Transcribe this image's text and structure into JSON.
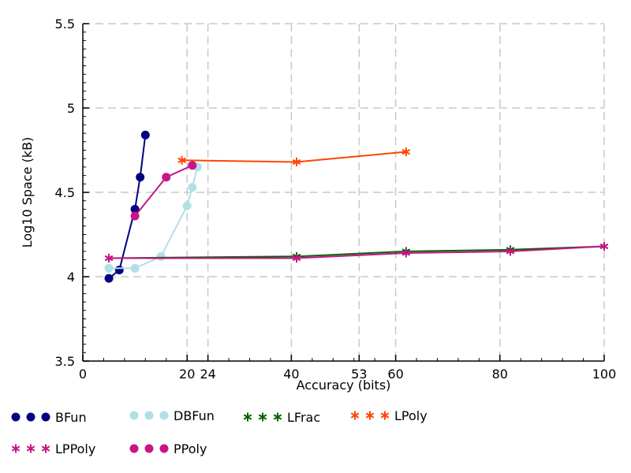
{
  "chart_data": {
    "type": "line",
    "xlabel": "Accuracy (bits)",
    "ylabel": "Log10 Space (kB)",
    "xlim": [
      0,
      100
    ],
    "ylim": [
      3.5,
      5.5
    ],
    "x_ticks": [
      0,
      20,
      24,
      40,
      53,
      60,
      80,
      100
    ],
    "x_tick_labels": [
      "0",
      "20",
      "24",
      "40",
      "53",
      "60",
      "80",
      "100"
    ],
    "y_ticks": [
      3.5,
      4,
      4.5,
      5,
      5.5
    ],
    "y_tick_labels": [
      "3.5",
      "4",
      "4.5",
      "5",
      "5.5"
    ],
    "grid": true,
    "legend_position": "bottom",
    "series": [
      {
        "name": "BFun",
        "color": "#000080",
        "marker": "circle",
        "points": [
          [
            5,
            3.99
          ],
          [
            7,
            4.04
          ],
          [
            10,
            4.4
          ],
          [
            11,
            4.59
          ],
          [
            12,
            4.84
          ]
        ]
      },
      {
        "name": "DBFun",
        "color": "#b0e0e6",
        "marker": "circle",
        "points": [
          [
            5,
            4.05
          ],
          [
            10,
            4.05
          ],
          [
            15,
            4.12
          ],
          [
            20,
            4.42
          ],
          [
            21,
            4.53
          ],
          [
            22,
            4.65
          ]
        ]
      },
      {
        "name": "LFrac",
        "color": "#006400",
        "marker": "asterisk",
        "points": [
          [
            5,
            4.11
          ],
          [
            41,
            4.12
          ],
          [
            62,
            4.15
          ],
          [
            82,
            4.16
          ],
          [
            100,
            4.18
          ]
        ]
      },
      {
        "name": "LPoly",
        "color": "#ff4500",
        "marker": "asterisk",
        "points": [
          [
            19,
            4.69
          ],
          [
            41,
            4.68
          ],
          [
            62,
            4.74
          ]
        ]
      },
      {
        "name": "LPPoly",
        "color": "#c71585",
        "marker": "asterisk",
        "points": [
          [
            5,
            4.11
          ],
          [
            41,
            4.11
          ],
          [
            62,
            4.14
          ],
          [
            82,
            4.15
          ],
          [
            100,
            4.18
          ]
        ]
      },
      {
        "name": "PPoly",
        "color": "#c71585",
        "marker": "circle",
        "points": [
          [
            10,
            4.36
          ],
          [
            16,
            4.59
          ],
          [
            21,
            4.66
          ]
        ]
      }
    ]
  }
}
